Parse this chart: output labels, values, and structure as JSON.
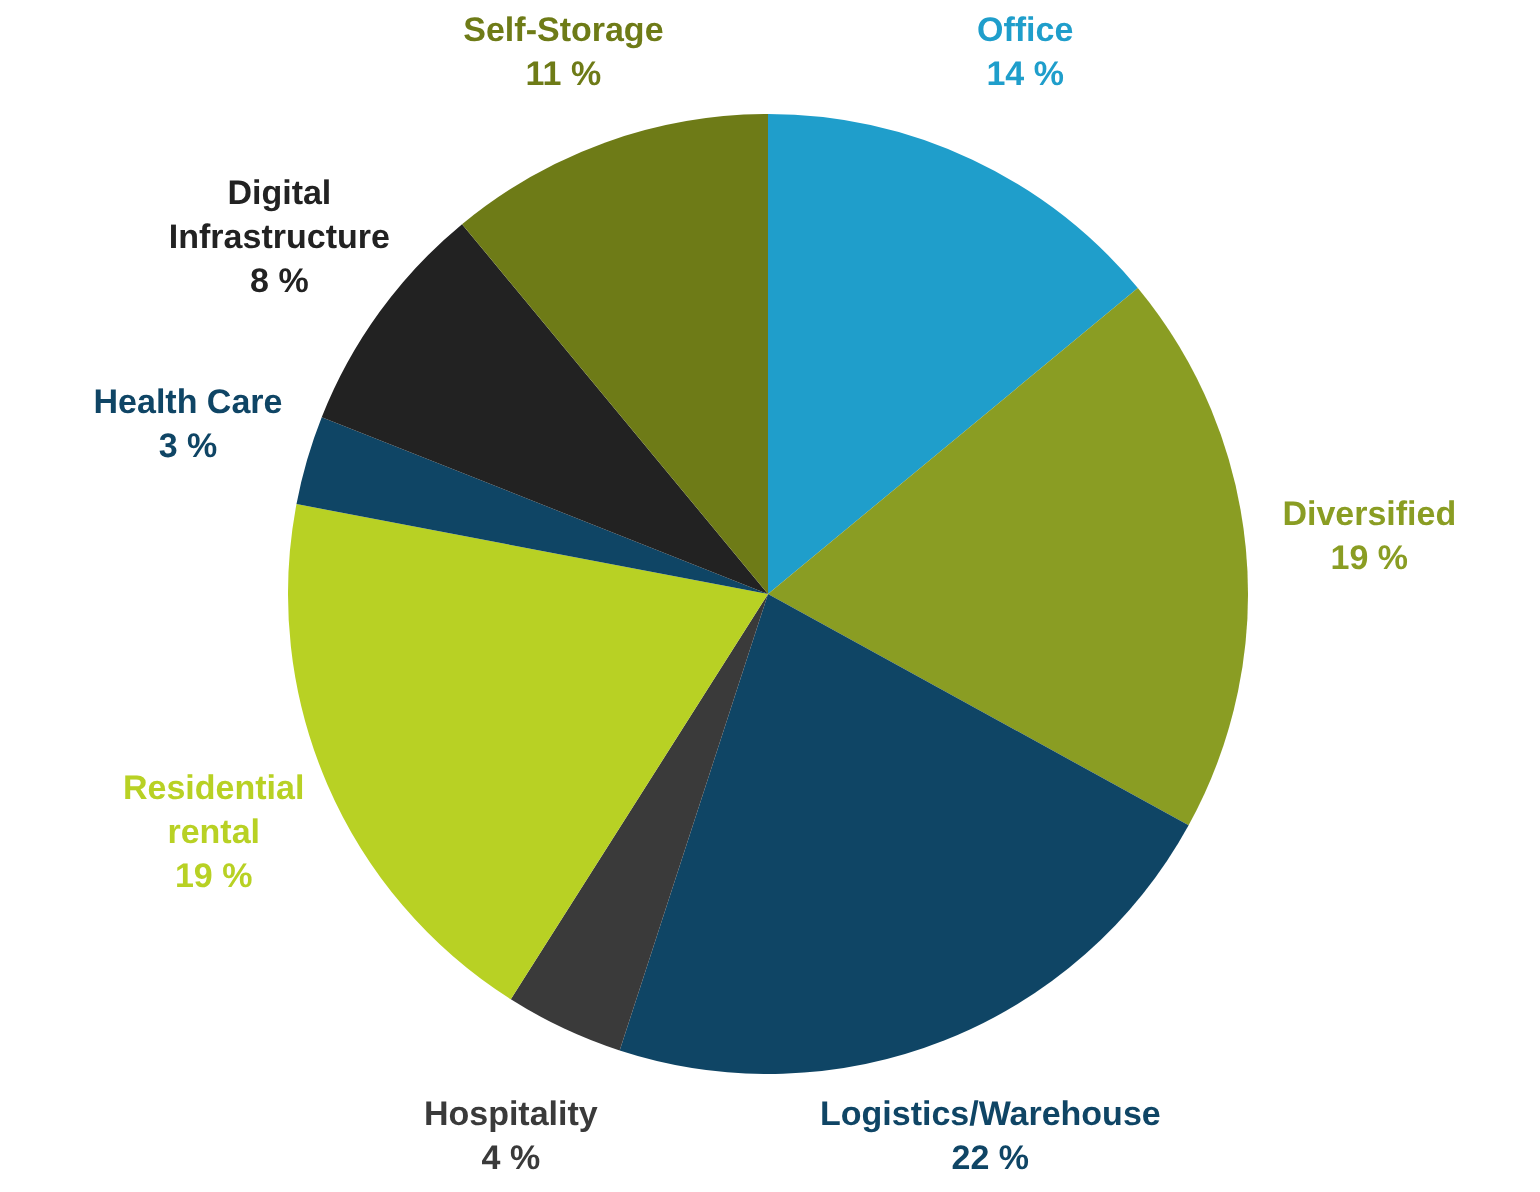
{
  "chart_data": {
    "type": "pie",
    "categories": [
      "Office",
      "Diversified",
      "Logistics/Warehouse",
      "Hospitality",
      "Residential rental",
      "Health Care",
      "Digital Infrastructure",
      "Self-Storage"
    ],
    "values": [
      14,
      19,
      22,
      4,
      19,
      3,
      8,
      11
    ],
    "colors": [
      "#1f9ecb",
      "#8a9d23",
      "#0f4565",
      "#3a3a3a",
      "#b8d124",
      "#0f4565",
      "#222222",
      "#6e7b17"
    ],
    "value_labels": [
      "14 %",
      "19 %",
      "22 %",
      "4 %",
      "19 %",
      "3 %",
      "8 %",
      "11 %"
    ],
    "legend": false
  }
}
